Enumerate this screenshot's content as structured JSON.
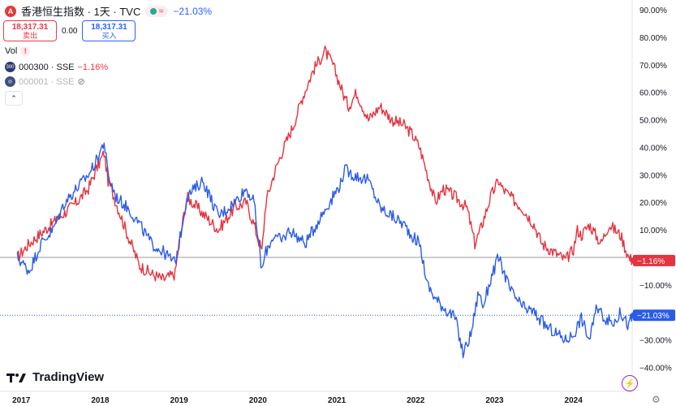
{
  "header": {
    "title": "香港恒生指数 · 1天 · TVC",
    "pill_symbol": "≈",
    "change": "−21.03%"
  },
  "trade": {
    "sell_price": "18,317.31",
    "sell_label": "卖出",
    "spread": "0.00",
    "buy_price": "18,317.31",
    "buy_label": "买入"
  },
  "legend": {
    "vol_label": "Vol",
    "vol_warn": "!",
    "series1_icon": "300",
    "series1_name": "000300 · SSE",
    "series1_change": "−1.16%",
    "series2_name": "000001 · SSE"
  },
  "brand": "TradingView",
  "colors": {
    "red": "#e5333f",
    "blue": "#2b5ce6",
    "bg": "#ffffff",
    "grid": "#f0f3fa"
  },
  "chart_data": {
    "type": "line",
    "x_labels": [
      "2017",
      "2018",
      "2019",
      "2020",
      "2021",
      "2022",
      "2023",
      "2024"
    ],
    "y_ticks": [
      90,
      80,
      70,
      60,
      50,
      40,
      30,
      20,
      10,
      -10,
      -20,
      -30,
      -40
    ],
    "y_tick_labels": [
      "90.00%",
      "80.00%",
      "70.00%",
      "60.00%",
      "50.00%",
      "40.00%",
      "30.00%",
      "20.00%",
      "10.00%",
      "−10.00%",
      "−20.00%",
      "−30.00%",
      "−40.00%"
    ],
    "ylim": [
      -45,
      92
    ],
    "y_unit": "%",
    "series": [
      {
        "symbol": "000300 · SSE",
        "color": "#e5333f",
        "last_label": "−1.16%",
        "x": [
          2016.95,
          2017.1,
          2017.3,
          2017.5,
          2017.7,
          2017.85,
          2017.95,
          2018.05,
          2018.1,
          2018.2,
          2018.35,
          2018.5,
          2018.65,
          2018.8,
          2018.95,
          2019.0,
          2019.1,
          2019.3,
          2019.5,
          2019.7,
          2019.85,
          2019.95,
          2020.05,
          2020.1,
          2020.2,
          2020.3,
          2020.45,
          2020.55,
          2020.7,
          2020.85,
          2020.95,
          2021.05,
          2021.1,
          2021.15,
          2021.25,
          2021.4,
          2021.55,
          2021.7,
          2021.85,
          2021.95,
          2022.05,
          2022.15,
          2022.25,
          2022.35,
          2022.5,
          2022.65,
          2022.75,
          2022.82,
          2022.95,
          2023.05,
          2023.1,
          2023.2,
          2023.35,
          2023.5,
          2023.6,
          2023.75,
          2023.9,
          2024.0,
          2024.05,
          2024.1,
          2024.2,
          2024.35,
          2024.45,
          2024.6,
          2024.7,
          2024.75
        ],
        "y": [
          0,
          5,
          10,
          15,
          20,
          25,
          32,
          38,
          28,
          20,
          8,
          -3,
          -6,
          -8,
          -6,
          5,
          22,
          16,
          10,
          18,
          20,
          12,
          2,
          20,
          30,
          38,
          48,
          57,
          68,
          75,
          70,
          62,
          58,
          55,
          60,
          50,
          55,
          50,
          48,
          45,
          40,
          30,
          20,
          25,
          22,
          18,
          5,
          10,
          22,
          28,
          25,
          22,
          18,
          12,
          5,
          2,
          -1,
          3,
          10,
          8,
          12,
          5,
          12,
          8,
          0,
          -1.16
        ]
      },
      {
        "symbol": "000001 · SSE",
        "color": "#2b5ce6",
        "last_label": "−21.03%",
        "x": [
          2016.95,
          2017.1,
          2017.25,
          2017.4,
          2017.55,
          2017.7,
          2017.85,
          2017.95,
          2018.05,
          2018.1,
          2018.2,
          2018.35,
          2018.5,
          2018.65,
          2018.8,
          2018.95,
          2019.0,
          2019.1,
          2019.3,
          2019.5,
          2019.7,
          2019.85,
          2019.95,
          2020.05,
          2020.1,
          2020.2,
          2020.3,
          2020.4,
          2020.6,
          2020.8,
          2020.95,
          2021.05,
          2021.1,
          2021.2,
          2021.4,
          2021.55,
          2021.7,
          2021.85,
          2021.95,
          2022.05,
          2022.15,
          2022.25,
          2022.35,
          2022.5,
          2022.6,
          2022.7,
          2022.8,
          2022.85,
          2022.95,
          2023.05,
          2023.2,
          2023.35,
          2023.5,
          2023.65,
          2023.8,
          2023.9,
          2024.0,
          2024.05,
          2024.1,
          2024.2,
          2024.3,
          2024.4,
          2024.5,
          2024.6,
          2024.7,
          2024.75
        ],
        "y": [
          0,
          -5,
          5,
          10,
          20,
          25,
          30,
          35,
          42,
          30,
          22,
          18,
          12,
          5,
          2,
          -2,
          5,
          22,
          28,
          15,
          20,
          25,
          20,
          -5,
          2,
          8,
          6,
          10,
          5,
          15,
          22,
          27,
          32,
          30,
          28,
          18,
          15,
          12,
          8,
          5,
          -10,
          -15,
          -18,
          -22,
          -35,
          -28,
          -12,
          -18,
          -8,
          0,
          -12,
          -18,
          -20,
          -25,
          -28,
          -30,
          -28,
          -25,
          -22,
          -30,
          -18,
          -22,
          -24,
          -20,
          -25,
          -21.03
        ]
      }
    ],
    "reference_line": 0,
    "grid": false,
    "legend": "top-left"
  }
}
